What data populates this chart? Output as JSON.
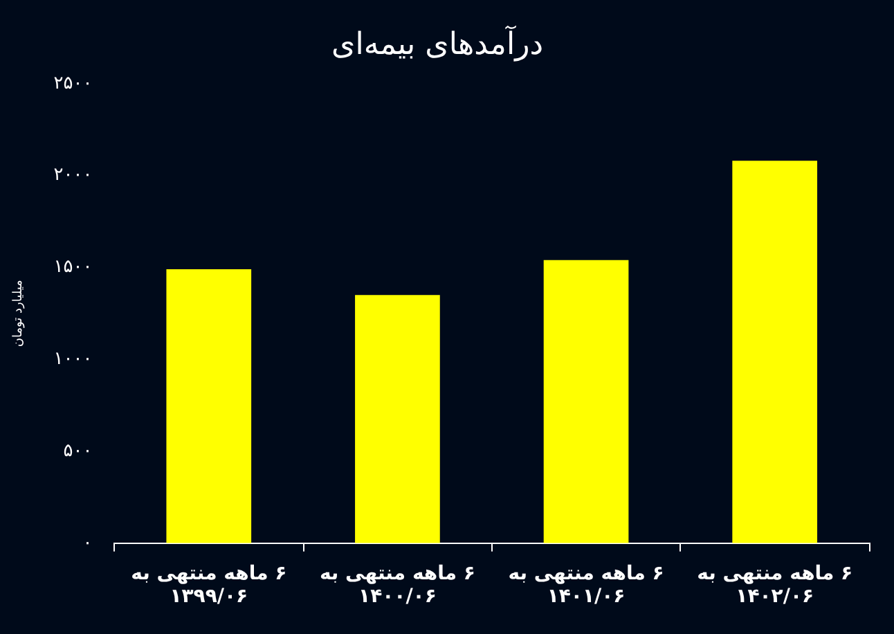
{
  "chart_data": {
    "type": "bar",
    "title": "درآمدهای بیمه‌ای",
    "ylabel": "میلیارد تومان",
    "categories": [
      "۶ ماهه منتهی به\n۱۳۹۹/۰۶",
      "۶ ماهه منتهی به\n۱۴۰۰/۰۶",
      "۶ ماهه منتهی به\n۱۴۰۱/۰۶",
      "۶ ماهه منتهی به\n۱۴۰۲/۰۶"
    ],
    "values": [
      1490,
      1350,
      1540,
      2080
    ],
    "color": "#ffff00",
    "ylim": [
      0,
      2500
    ],
    "yticks": [
      {
        "value": 0,
        "label": "۰"
      },
      {
        "value": 500,
        "label": "۵۰۰"
      },
      {
        "value": 1000,
        "label": "۱۰۰۰"
      },
      {
        "value": 1500,
        "label": "۱۵۰۰"
      },
      {
        "value": 2000,
        "label": "۲۰۰۰"
      },
      {
        "value": 2500,
        "label": "۲۵۰۰"
      }
    ],
    "grid": false,
    "legend": false
  }
}
